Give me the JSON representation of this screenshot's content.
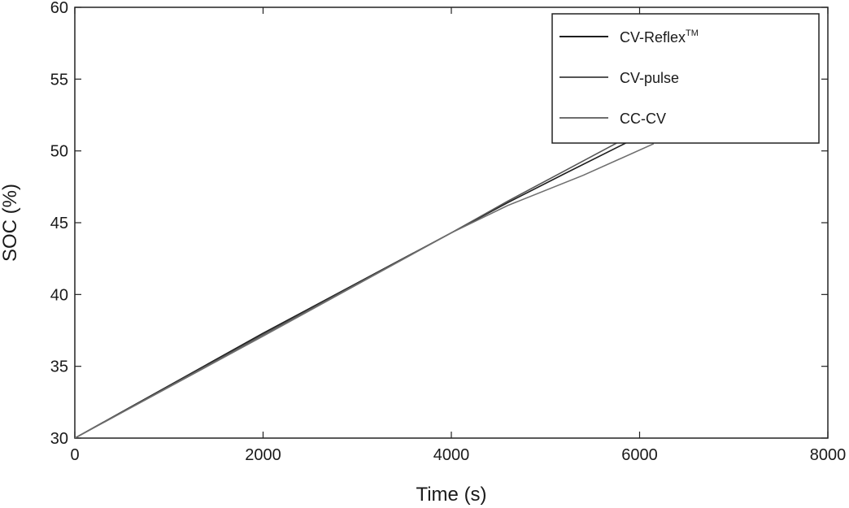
{
  "chart_data": {
    "type": "line",
    "xlabel": "Time (s)",
    "ylabel": "SOC (%)",
    "xlim": [
      0,
      8000
    ],
    "ylim": [
      30,
      60
    ],
    "xticks": [
      0,
      2000,
      4000,
      6000,
      8000
    ],
    "yticks": [
      30,
      35,
      40,
      45,
      50,
      55,
      60
    ],
    "grid": false,
    "legend_position": "top-right",
    "series": [
      {
        "name": "CV-Reflex",
        "name_superscript": "TM",
        "color": "#1e1e1e",
        "x": [
          0,
          2000,
          4000,
          4600,
          5200,
          5900
        ],
        "y": [
          30.0,
          37.3,
          44.3,
          46.4,
          48.4,
          50.7
        ]
      },
      {
        "name": "CV-pulse",
        "color": "#555555",
        "x": [
          0,
          2000,
          4000,
          4600,
          5200,
          5800
        ],
        "y": [
          30.0,
          37.2,
          44.3,
          46.5,
          48.6,
          50.7
        ]
      },
      {
        "name": "CC-CV",
        "color": "#6e6e6e",
        "x": [
          0,
          2000,
          4000,
          4600,
          5400,
          6150
        ],
        "y": [
          30.0,
          37.1,
          44.3,
          46.2,
          48.3,
          50.5
        ]
      }
    ]
  }
}
